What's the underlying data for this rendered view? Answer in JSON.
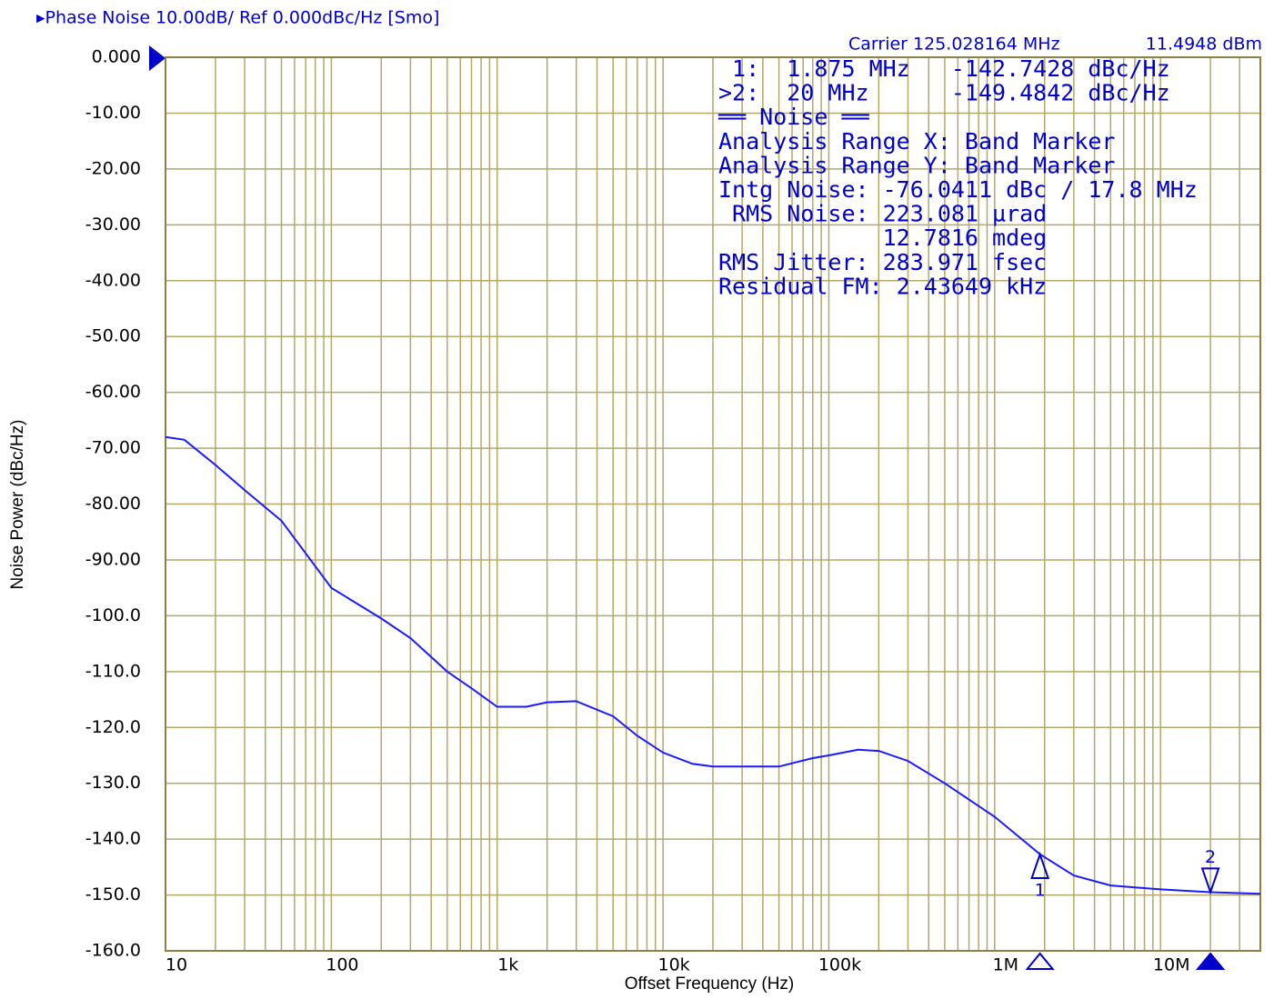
{
  "chart_data": {
    "type": "line",
    "title": "▸Phase Noise 10.00dB/ Ref 0.000dBc/Hz [Smo]",
    "carrier": "Carrier 125.028164 MHz",
    "carrier_power": "11.4948 dBm",
    "xlabel": "Offset Frequency (Hz)",
    "ylabel": "Noise Power (dBc/Hz)",
    "log_x": true,
    "grid": true,
    "color": "#1a1aff",
    "x": [
      10,
      13,
      20,
      30,
      50,
      100,
      200,
      300,
      500,
      700,
      1000,
      1500,
      2000,
      3000,
      5000,
      7000,
      10000,
      15000,
      20000,
      50000,
      80000,
      100000,
      150000,
      200000,
      300000,
      500000,
      1000000,
      1875000,
      3000000,
      5000000,
      10000000,
      20000000,
      40000000
    ],
    "values": [
      -68,
      -68.5,
      -73,
      -77.5,
      -83,
      -95,
      -100.5,
      -104,
      -110,
      -113,
      -116.3,
      -116.3,
      -115.5,
      -115.3,
      -118,
      -121.5,
      -124.5,
      -126.5,
      -127,
      -127,
      -125.5,
      -125,
      -124,
      -124.2,
      -126,
      -130,
      -136,
      -142.7,
      -146.5,
      -148.3,
      -149,
      -149.5,
      -149.8
    ],
    "xlim": [
      10,
      40000000
    ],
    "ylim": [
      -160,
      0
    ],
    "xticks": [
      10,
      100,
      {
        "value": 1000,
        "label": "1k"
      },
      {
        "value": 10000,
        "label": "10k"
      },
      {
        "value": 100000,
        "label": "100k"
      },
      {
        "value": 1000000,
        "label": "1M"
      },
      {
        "value": 10000000,
        "label": "10M"
      }
    ],
    "yticks": [
      {
        "value": 0,
        "label": "0.000"
      },
      {
        "value": -10,
        "label": "-10.00"
      },
      {
        "value": -20,
        "label": "-20.00"
      },
      {
        "value": -30,
        "label": "-30.00"
      },
      {
        "value": -40,
        "label": "-40.00"
      },
      {
        "value": -50,
        "label": "-50.00"
      },
      {
        "value": -60,
        "label": "-60.00"
      },
      {
        "value": -70,
        "label": "-70.00"
      },
      {
        "value": -80,
        "label": "-80.00"
      },
      {
        "value": -90,
        "label": "-90.00"
      },
      {
        "value": -100,
        "label": "-100.0"
      },
      {
        "value": -110,
        "label": "-110.0"
      },
      {
        "value": -120,
        "label": "-120.0"
      },
      {
        "value": -130,
        "label": "-130.0"
      },
      {
        "value": -140,
        "label": "-140.0"
      },
      {
        "value": -150,
        "label": "-150.0"
      },
      {
        "value": -160,
        "label": "-160.0"
      }
    ],
    "markers": [
      {
        "label": "1",
        "x": 1875000,
        "y": -142.7428
      },
      {
        "label": "2",
        "x": 20000000,
        "y": -149.4842
      }
    ],
    "readout": [
      " 1:  1.875 MHz   -142.7428 dBc/Hz",
      ">2:  20 MHz      -149.4842 dBc/Hz",
      "══ Noise ══",
      "Analysis Range X: Band Marker",
      "Analysis Range Y: Band Marker",
      "Intg Noise: -76.0411 dBc / 17.8 MHz",
      " RMS Noise: 223.081 µrad",
      "            12.7816 mdeg",
      "RMS Jitter: 283.971 fsec",
      "Residual FM: 2.43649 kHz"
    ]
  }
}
